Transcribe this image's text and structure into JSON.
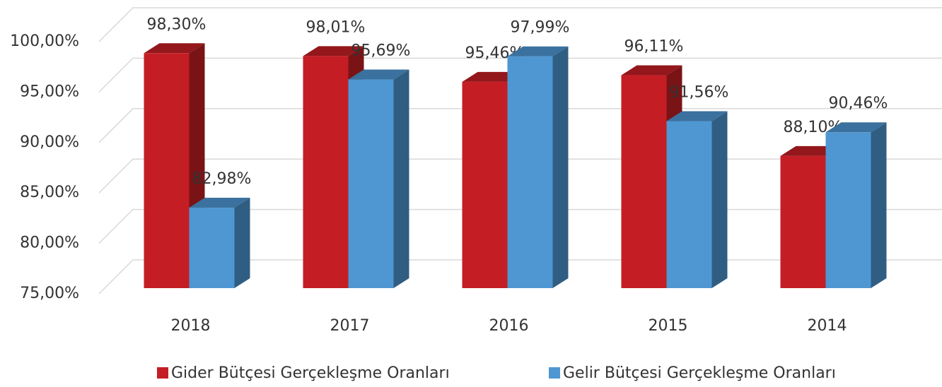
{
  "chart_data": {
    "type": "bar3d",
    "categories": [
      "2018",
      "2017",
      "2016",
      "2015",
      "2014"
    ],
    "series": [
      {
        "name": "Gider Bütçesi Gerçekleşme Oranları",
        "color": "#c41e24",
        "values": [
          98.3,
          98.01,
          95.46,
          96.11,
          88.1
        ],
        "value_labels": [
          "98,30%",
          "98,01%",
          "95,46%",
          "96,11%",
          "88,10%"
        ]
      },
      {
        "name": "Gelir Bütçesi Gerçekleşme Oranları",
        "color": "#4e97d2",
        "values": [
          82.98,
          95.69,
          97.99,
          91.56,
          90.46
        ],
        "value_labels": [
          "82,98%",
          "95,69%",
          "97,99%",
          "91,56%",
          "90,46%"
        ]
      }
    ],
    "ylim": [
      75,
      100
    ],
    "yticks": [
      {
        "value": 75,
        "label": "75,00%"
      },
      {
        "value": 80,
        "label": "80,00%"
      },
      {
        "value": 85,
        "label": "85,00%"
      },
      {
        "value": 90,
        "label": "90,00%"
      },
      {
        "value": 95,
        "label": "95,00%"
      },
      {
        "value": 100,
        "label": "100,00%"
      }
    ],
    "grid": true,
    "legend": "bottom"
  }
}
